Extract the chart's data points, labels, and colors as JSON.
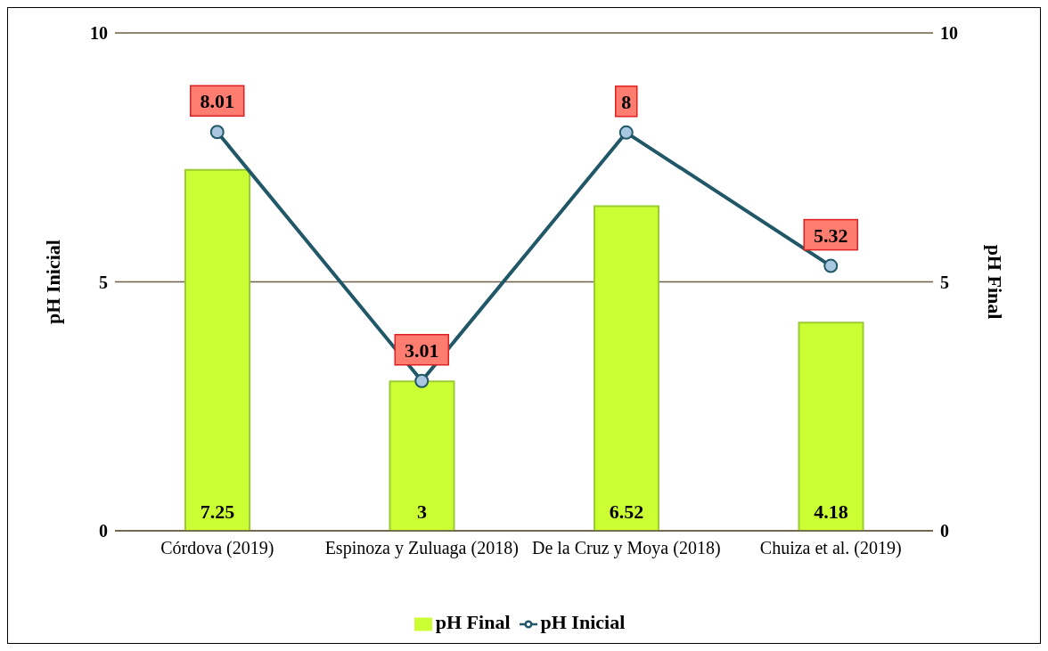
{
  "chart_data": {
    "type": "bar",
    "categories": [
      "Córdova (2019)",
      "Espinoza y Zuluaga (2018)",
      "De la Cruz y Moya (2018)",
      "Chuiza et al. (2019)"
    ],
    "ylabel": "pH Inicial",
    "y2label": "pH Final",
    "ylim": [
      0,
      10
    ],
    "yticks": [
      0,
      5,
      10
    ],
    "y2lim": [
      0,
      10
    ],
    "y2ticks": [
      0,
      5,
      10
    ],
    "grid": "y",
    "legend": "bottom",
    "data_labels": true,
    "marker": "circle",
    "series": [
      {
        "name": "pH Final",
        "color": "#ccff33",
        "values": [
          7.25,
          3,
          6.52,
          4.18
        ]
      },
      {
        "name": "pH Inicial",
        "type": "line",
        "color": "#215868",
        "values": [
          8.01,
          3.01,
          8,
          5.32
        ]
      }
    ]
  }
}
